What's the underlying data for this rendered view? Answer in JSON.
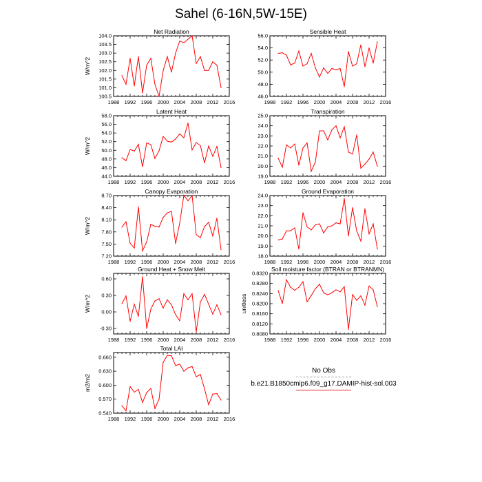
{
  "figure": {
    "title": "Sahel (6-16N,5W-15E)"
  },
  "legend": {
    "obs_label": "No Obs",
    "model_label": "b.e21.B1850cmip6.f09_g17.DAMIP-hist-sol.003",
    "model_color": "#ff0000",
    "obs_color": "#9a9a9a"
  },
  "chart_data": [
    {
      "type": "line",
      "title": "Net Radiation",
      "ylabel": "W/m^2",
      "xlim": [
        1988,
        2016
      ],
      "xticks": [
        1988,
        1992,
        1996,
        2000,
        2004,
        2008,
        2012,
        2016
      ],
      "ylim": [
        100.5,
        104.0
      ],
      "yticks": [
        "100.5",
        "101.0",
        "101.5",
        "102.0",
        "102.5",
        "103.0",
        "103.5",
        "104.0"
      ],
      "series": [
        {
          "x": [
            1990,
            1991,
            1992,
            1993,
            1994,
            1995,
            1996,
            1997,
            1998,
            1999,
            2000,
            2001,
            2002,
            2003,
            2004,
            2005,
            2006,
            2007,
            2008,
            2009,
            2010,
            2011,
            2012,
            2013,
            2014
          ],
          "values": [
            101.7,
            101.2,
            102.7,
            101.1,
            102.8,
            100.7,
            102.3,
            102.7,
            101.2,
            100.5,
            102.0,
            102.8,
            101.9,
            103.0,
            103.7,
            103.6,
            103.8,
            104.0,
            102.4,
            102.8,
            102.0,
            102.0,
            102.5,
            102.3,
            101.0
          ]
        }
      ]
    },
    {
      "type": "line",
      "title": "Sensible Heat",
      "ylabel": "",
      "xlim": [
        1988,
        2016
      ],
      "xticks": [
        1988,
        1992,
        1996,
        2000,
        2004,
        2008,
        2012,
        2016
      ],
      "ylim": [
        46.0,
        56.0
      ],
      "yticks": [
        "46.0",
        "48.0",
        "50.0",
        "52.0",
        "54.0",
        "56.0"
      ],
      "series": [
        {
          "x": [
            1990,
            1991,
            1992,
            1993,
            1994,
            1995,
            1996,
            1997,
            1998,
            1999,
            2000,
            2001,
            2002,
            2003,
            2004,
            2005,
            2006,
            2007,
            2008,
            2009,
            2010,
            2011,
            2012,
            2013,
            2014
          ],
          "values": [
            53.1,
            53.2,
            52.8,
            51.2,
            51.5,
            53.5,
            51.0,
            51.4,
            53.1,
            50.7,
            49.2,
            50.7,
            49.8,
            50.6,
            50.4,
            50.6,
            47.6,
            53.4,
            51.0,
            51.4,
            54.5,
            50.9,
            54.0,
            51.5,
            55.0
          ]
        }
      ]
    },
    {
      "type": "line",
      "title": "Latent Heat",
      "ylabel": "W/m^2",
      "xlim": [
        1988,
        2016
      ],
      "xticks": [
        1988,
        1992,
        1996,
        2000,
        2004,
        2008,
        2012,
        2016
      ],
      "ylim": [
        44.0,
        58.0
      ],
      "yticks": [
        "44.0",
        "46.0",
        "48.0",
        "50.0",
        "52.0",
        "54.0",
        "56.0",
        "58.0"
      ],
      "series": [
        {
          "x": [
            1990,
            1991,
            1992,
            1993,
            1994,
            1995,
            1996,
            1997,
            1998,
            1999,
            2000,
            2001,
            2002,
            2003,
            2004,
            2005,
            2006,
            2007,
            2008,
            2009,
            2010,
            2011,
            2012,
            2013,
            2014
          ],
          "values": [
            48.3,
            47.6,
            50.2,
            49.8,
            51.4,
            46.2,
            51.7,
            51.3,
            48.1,
            49.9,
            53.2,
            52.1,
            51.9,
            52.6,
            53.8,
            52.9,
            56.3,
            50.1,
            51.8,
            51.1,
            47.1,
            51.0,
            48.6,
            50.9,
            46.0
          ]
        }
      ]
    },
    {
      "type": "line",
      "title": "Transpiration",
      "ylabel": "",
      "xlim": [
        1988,
        2016
      ],
      "xticks": [
        1988,
        1992,
        1996,
        2000,
        2004,
        2008,
        2012,
        2016
      ],
      "ylim": [
        19.0,
        25.0
      ],
      "yticks": [
        "19.0",
        "20.0",
        "21.0",
        "22.0",
        "23.0",
        "24.0",
        "25.0"
      ],
      "series": [
        {
          "x": [
            1990,
            1991,
            1992,
            1993,
            1994,
            1995,
            1996,
            1997,
            1998,
            1999,
            2000,
            2001,
            2002,
            2003,
            2004,
            2005,
            2006,
            2007,
            2008,
            2009,
            2010,
            2011,
            2012,
            2013,
            2014
          ],
          "values": [
            20.8,
            19.9,
            22.1,
            21.8,
            22.2,
            20.1,
            21.8,
            22.3,
            19.5,
            20.4,
            23.5,
            23.5,
            22.6,
            23.6,
            24.0,
            22.8,
            23.9,
            21.4,
            21.2,
            23.1,
            19.8,
            20.2,
            20.7,
            21.4,
            20.0
          ]
        }
      ]
    },
    {
      "type": "line",
      "title": "Canopy Evaporation",
      "ylabel": "W/m^2",
      "xlim": [
        1988,
        2016
      ],
      "xticks": [
        1988,
        1992,
        1996,
        2000,
        2004,
        2008,
        2012,
        2016
      ],
      "ylim": [
        7.2,
        8.7
      ],
      "yticks": [
        "7.20",
        "7.50",
        "7.80",
        "8.10",
        "8.40",
        "8.70"
      ],
      "series": [
        {
          "x": [
            1990,
            1991,
            1992,
            1993,
            1994,
            1995,
            1996,
            1997,
            1998,
            1999,
            2000,
            2001,
            2002,
            2003,
            2004,
            2005,
            2006,
            2007,
            2008,
            2009,
            2010,
            2011,
            2012,
            2013,
            2014
          ],
          "values": [
            7.92,
            8.05,
            7.52,
            7.4,
            8.42,
            7.33,
            7.55,
            7.99,
            7.94,
            7.92,
            8.16,
            8.27,
            8.31,
            7.51,
            8.02,
            8.71,
            8.57,
            8.7,
            7.73,
            7.66,
            7.93,
            8.04,
            7.7,
            8.14,
            7.36
          ]
        }
      ]
    },
    {
      "type": "line",
      "title": "Ground Evaporation",
      "ylabel": "",
      "xlim": [
        1988,
        2016
      ],
      "xticks": [
        1988,
        1992,
        1996,
        2000,
        2004,
        2008,
        2012,
        2016
      ],
      "ylim": [
        18.0,
        24.0
      ],
      "yticks": [
        "18.0",
        "19.0",
        "20.0",
        "21.0",
        "22.0",
        "23.0",
        "24.0"
      ],
      "series": [
        {
          "x": [
            1990,
            1991,
            1992,
            1993,
            1994,
            1995,
            1996,
            1997,
            1998,
            1999,
            2000,
            2001,
            2002,
            2003,
            2004,
            2005,
            2006,
            2007,
            2008,
            2009,
            2010,
            2011,
            2012,
            2013,
            2014
          ],
          "values": [
            19.6,
            19.7,
            20.5,
            20.5,
            20.8,
            18.7,
            22.3,
            20.9,
            20.6,
            21.1,
            21.2,
            20.3,
            20.9,
            21.0,
            21.3,
            21.2,
            23.7,
            20.0,
            22.8,
            20.5,
            19.5,
            22.7,
            20.2,
            21.2,
            18.7
          ]
        }
      ]
    },
    {
      "type": "line",
      "title": "Ground Heat + Snow Melt",
      "ylabel": "W/m^2",
      "xlim": [
        1988,
        2016
      ],
      "xticks": [
        1988,
        1992,
        1996,
        2000,
        2004,
        2008,
        2012,
        2016
      ],
      "ylim": [
        -0.4,
        0.7
      ],
      "yticks": [
        "-0.30",
        "0.00",
        "0.30",
        "0.60"
      ],
      "series": [
        {
          "x": [
            1990,
            1991,
            1992,
            1993,
            1994,
            1995,
            1996,
            1997,
            1998,
            1999,
            2000,
            2001,
            2002,
            2003,
            2004,
            2005,
            2006,
            2007,
            2008,
            2009,
            2010,
            2011,
            2012,
            2013,
            2014
          ],
          "values": [
            0.15,
            0.29,
            -0.17,
            0.14,
            -0.08,
            0.64,
            -0.3,
            0.05,
            0.2,
            0.24,
            0.07,
            0.22,
            0.13,
            -0.05,
            -0.16,
            0.33,
            0.22,
            0.33,
            -0.36,
            0.18,
            0.32,
            0.14,
            -0.04,
            0.13,
            -0.05
          ]
        }
      ]
    },
    {
      "type": "line",
      "title": "Soil moisture factor (BTRAN or BTRANMN)",
      "ylabel": "unitless",
      "xlim": [
        1988,
        2016
      ],
      "xticks": [
        1988,
        1992,
        1996,
        2000,
        2004,
        2008,
        2012,
        2016
      ],
      "ylim": [
        0.808,
        0.832
      ],
      "yticks": [
        "0.8080",
        "0.8120",
        "0.8160",
        "0.8200",
        "0.8240",
        "0.8280",
        "0.8320"
      ],
      "series": [
        {
          "x": [
            1990,
            1991,
            1992,
            1993,
            1994,
            1995,
            1996,
            1997,
            1998,
            1999,
            2000,
            2001,
            2002,
            2003,
            2004,
            2005,
            2006,
            2007,
            2008,
            2009,
            2010,
            2011,
            2012,
            2013,
            2014
          ],
          "values": [
            0.8252,
            0.82,
            0.8295,
            0.8265,
            0.8253,
            0.8265,
            0.8287,
            0.8207,
            0.8232,
            0.8259,
            0.8277,
            0.8243,
            0.8235,
            0.8243,
            0.8255,
            0.8247,
            0.8267,
            0.8098,
            0.8236,
            0.8213,
            0.8231,
            0.8194,
            0.827,
            0.8255,
            0.8188
          ]
        }
      ]
    },
    {
      "type": "line",
      "title": "Total LAI",
      "ylabel": "m2/m2",
      "xlim": [
        1988,
        2016
      ],
      "xticks": [
        1988,
        1992,
        1996,
        2000,
        2004,
        2008,
        2012,
        2016
      ],
      "ylim": [
        0.54,
        0.67
      ],
      "yticks": [
        "0.540",
        "0.570",
        "0.600",
        "0.630",
        "0.660"
      ],
      "series": [
        {
          "x": [
            1990,
            1991,
            1992,
            1993,
            1994,
            1995,
            1996,
            1997,
            1998,
            1999,
            2000,
            2001,
            2002,
            2003,
            2004,
            2005,
            2006,
            2007,
            2008,
            2009,
            2010,
            2011,
            2012,
            2013,
            2014
          ],
          "values": [
            0.556,
            0.545,
            0.597,
            0.585,
            0.591,
            0.563,
            0.584,
            0.593,
            0.55,
            0.57,
            0.649,
            0.664,
            0.663,
            0.642,
            0.645,
            0.63,
            0.637,
            0.64,
            0.618,
            0.623,
            0.592,
            0.558,
            0.581,
            0.582,
            0.568
          ]
        }
      ]
    }
  ]
}
